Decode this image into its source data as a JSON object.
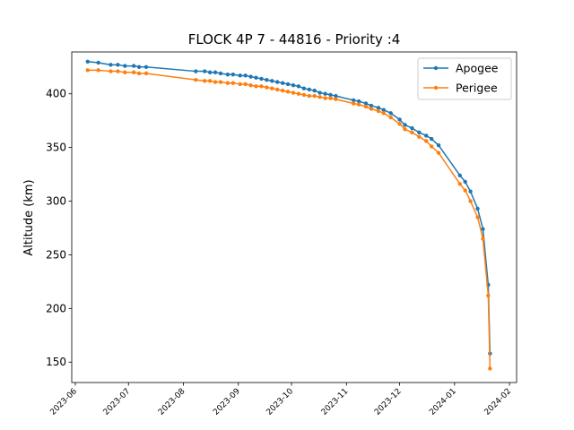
{
  "chart_data": {
    "type": "line",
    "title": "FLOCK 4P 7 - 44816 - Priority :4",
    "xlabel": "",
    "ylabel": "Altitude (km)",
    "x_type": "date",
    "xlim": [
      "2023-05-30",
      "2024-02-05"
    ],
    "ylim": [
      131,
      439
    ],
    "x_ticks": [
      "2023-06",
      "2023-07",
      "2023-08",
      "2023-09",
      "2023-10",
      "2023-11",
      "2023-12",
      "2024-01",
      "2024-02"
    ],
    "y_ticks": [
      150,
      200,
      250,
      300,
      350,
      400
    ],
    "grid": false,
    "legend": "top-right",
    "colors": {
      "apogee": "#1f77b4",
      "perigee": "#ff7f0e"
    },
    "series": [
      {
        "name": "Apogee",
        "points": [
          [
            "2023-06-08",
            430
          ],
          [
            "2023-06-14",
            429
          ],
          [
            "2023-06-21",
            427
          ],
          [
            "2023-06-25",
            427
          ],
          [
            "2023-06-29",
            426
          ],
          [
            "2023-07-04",
            426
          ],
          [
            "2023-07-07",
            425
          ],
          [
            "2023-07-11",
            425
          ],
          [
            "2023-08-08",
            421
          ],
          [
            "2023-08-13",
            421
          ],
          [
            "2023-08-16",
            420
          ],
          [
            "2023-08-19",
            420
          ],
          [
            "2023-08-22",
            419
          ],
          [
            "2023-08-26",
            418
          ],
          [
            "2023-08-29",
            418
          ],
          [
            "2023-09-02",
            417
          ],
          [
            "2023-09-05",
            417
          ],
          [
            "2023-09-08",
            416
          ],
          [
            "2023-09-11",
            415
          ],
          [
            "2023-09-14",
            414
          ],
          [
            "2023-09-17",
            413
          ],
          [
            "2023-09-20",
            412
          ],
          [
            "2023-09-23",
            411
          ],
          [
            "2023-09-26",
            410
          ],
          [
            "2023-09-29",
            409
          ],
          [
            "2023-10-02",
            408
          ],
          [
            "2023-10-05",
            407
          ],
          [
            "2023-10-08",
            405
          ],
          [
            "2023-10-11",
            404
          ],
          [
            "2023-10-14",
            403
          ],
          [
            "2023-10-17",
            401
          ],
          [
            "2023-10-20",
            400
          ],
          [
            "2023-10-23",
            399
          ],
          [
            "2023-10-26",
            398
          ],
          [
            "2023-11-05",
            394
          ],
          [
            "2023-11-08",
            393
          ],
          [
            "2023-11-12",
            391
          ],
          [
            "2023-11-15",
            389
          ],
          [
            "2023-11-19",
            387
          ],
          [
            "2023-11-22",
            385
          ],
          [
            "2023-11-26",
            382
          ],
          [
            "2023-12-01",
            376
          ],
          [
            "2023-12-04",
            371
          ],
          [
            "2023-12-08",
            368
          ],
          [
            "2023-12-12",
            364
          ],
          [
            "2023-12-16",
            361
          ],
          [
            "2023-12-19",
            358
          ],
          [
            "2023-12-23",
            352
          ],
          [
            "2024-01-04",
            324
          ],
          [
            "2024-01-07",
            318
          ],
          [
            "2024-01-10",
            309
          ],
          [
            "2024-01-14",
            293
          ],
          [
            "2024-01-17",
            274
          ],
          [
            "2024-01-20",
            222
          ],
          [
            "2024-01-21",
            158
          ]
        ]
      },
      {
        "name": "Perigee",
        "points": [
          [
            "2023-06-08",
            422
          ],
          [
            "2023-06-14",
            422
          ],
          [
            "2023-06-21",
            421
          ],
          [
            "2023-06-25",
            421
          ],
          [
            "2023-06-29",
            420
          ],
          [
            "2023-07-04",
            420
          ],
          [
            "2023-07-07",
            419
          ],
          [
            "2023-07-11",
            419
          ],
          [
            "2023-08-08",
            413
          ],
          [
            "2023-08-13",
            412
          ],
          [
            "2023-08-16",
            412
          ],
          [
            "2023-08-19",
            411
          ],
          [
            "2023-08-22",
            411
          ],
          [
            "2023-08-26",
            410
          ],
          [
            "2023-08-29",
            410
          ],
          [
            "2023-09-02",
            409
          ],
          [
            "2023-09-05",
            409
          ],
          [
            "2023-09-08",
            408
          ],
          [
            "2023-09-11",
            407
          ],
          [
            "2023-09-14",
            407
          ],
          [
            "2023-09-17",
            406
          ],
          [
            "2023-09-20",
            405
          ],
          [
            "2023-09-23",
            404
          ],
          [
            "2023-09-26",
            403
          ],
          [
            "2023-09-29",
            402
          ],
          [
            "2023-10-02",
            401
          ],
          [
            "2023-10-05",
            400
          ],
          [
            "2023-10-08",
            399
          ],
          [
            "2023-10-11",
            398
          ],
          [
            "2023-10-14",
            398
          ],
          [
            "2023-10-17",
            397
          ],
          [
            "2023-10-20",
            396
          ],
          [
            "2023-10-23",
            396
          ],
          [
            "2023-10-26",
            395
          ],
          [
            "2023-11-05",
            391
          ],
          [
            "2023-11-08",
            390
          ],
          [
            "2023-11-12",
            388
          ],
          [
            "2023-11-15",
            386
          ],
          [
            "2023-11-19",
            384
          ],
          [
            "2023-11-22",
            382
          ],
          [
            "2023-11-26",
            378
          ],
          [
            "2023-12-01",
            372
          ],
          [
            "2023-12-04",
            367
          ],
          [
            "2023-12-08",
            364
          ],
          [
            "2023-12-12",
            360
          ],
          [
            "2023-12-16",
            356
          ],
          [
            "2023-12-19",
            351
          ],
          [
            "2023-12-23",
            345
          ],
          [
            "2024-01-04",
            316
          ],
          [
            "2024-01-07",
            310
          ],
          [
            "2024-01-10",
            300
          ],
          [
            "2024-01-14",
            285
          ],
          [
            "2024-01-17",
            265
          ],
          [
            "2024-01-20",
            212
          ],
          [
            "2024-01-21",
            144
          ]
        ]
      }
    ]
  }
}
